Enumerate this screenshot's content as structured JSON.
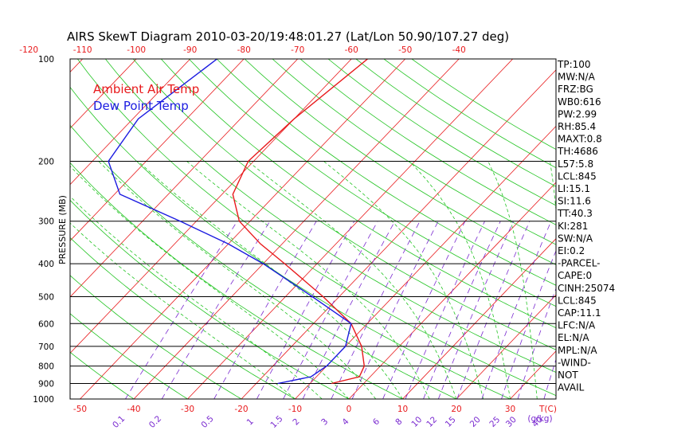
{
  "chart_data": {
    "type": "line",
    "title": "AIRS SkewT Diagram 2010-03-20/19:48:01.27 (Lat/Lon 50.90/107.27 deg)",
    "ylabel": "PRESSURE (MB)",
    "pressure_ticks": [
      100,
      200,
      300,
      400,
      500,
      600,
      700,
      800,
      900,
      1000
    ],
    "pressure_range": [
      100,
      1000
    ],
    "top_temp_ticks": [
      "-120",
      "-110",
      "-100",
      "-90",
      "-80",
      "-70",
      "-60",
      "-50",
      "-40"
    ],
    "bottom_temp_ticks": [
      "-50",
      "-40",
      "-30",
      "-20",
      "-10",
      "0",
      "10",
      "20",
      "30"
    ],
    "bottom_temp_unit": "T(C)",
    "mixing_ratio_ticks": [
      "0.1",
      "0.2",
      "0.5",
      "1",
      "1.5",
      "2",
      "3",
      "4",
      "6",
      "8",
      "10",
      "12",
      "15",
      "20",
      "25",
      "30",
      "40"
    ],
    "mixing_ratio_unit": "(g/kg)",
    "legend": [
      {
        "label": "Ambient Air Temp",
        "color": "#e8191b"
      },
      {
        "label": "Dew Point Temp",
        "color": "#1b1be0"
      }
    ],
    "series": [
      {
        "name": "Ambient Air Temp",
        "color": "#e8191b",
        "points": [
          {
            "p": 100,
            "t": -57
          },
          {
            "p": 150,
            "t": -60
          },
          {
            "p": 200,
            "t": -61
          },
          {
            "p": 250,
            "t": -58
          },
          {
            "p": 300,
            "t": -52
          },
          {
            "p": 350,
            "t": -44
          },
          {
            "p": 400,
            "t": -36
          },
          {
            "p": 500,
            "t": -23
          },
          {
            "p": 600,
            "t": -13
          },
          {
            "p": 700,
            "t": -7
          },
          {
            "p": 800,
            "t": -3
          },
          {
            "p": 860,
            "t": -2
          },
          {
            "p": 900,
            "t": -6
          }
        ]
      },
      {
        "name": "Dew Point Temp",
        "color": "#1b1be0",
        "points": [
          {
            "p": 100,
            "t": -85
          },
          {
            "p": 150,
            "t": -89
          },
          {
            "p": 200,
            "t": -87
          },
          {
            "p": 250,
            "t": -79
          },
          {
            "p": 300,
            "t": -63
          },
          {
            "p": 350,
            "t": -50
          },
          {
            "p": 400,
            "t": -40
          },
          {
            "p": 500,
            "t": -25
          },
          {
            "p": 600,
            "t": -13
          },
          {
            "p": 700,
            "t": -10
          },
          {
            "p": 800,
            "t": -10
          },
          {
            "p": 860,
            "t": -11
          },
          {
            "p": 900,
            "t": -16
          }
        ]
      }
    ],
    "indices": [
      "TP:100",
      "MW:N/A",
      "FRZ:BG",
      "WB0:616",
      "PW:2.99",
      "RH:85.4",
      "MAXT:0.8",
      "TH:4686",
      "L57:5.8",
      "LCL:845",
      "LI:15.1",
      "SI:11.6",
      "TT:40.3",
      "KI:281",
      "SW:N/A",
      "EI:0.2",
      "-PARCEL-",
      "CAPE:0",
      "CINH:25074",
      "LCL:845",
      "CAP:11.1",
      "LFC:N/A",
      "EL:N/A",
      "MPL:N/A",
      "-WIND-",
      "NOT",
      "AVAIL"
    ]
  }
}
